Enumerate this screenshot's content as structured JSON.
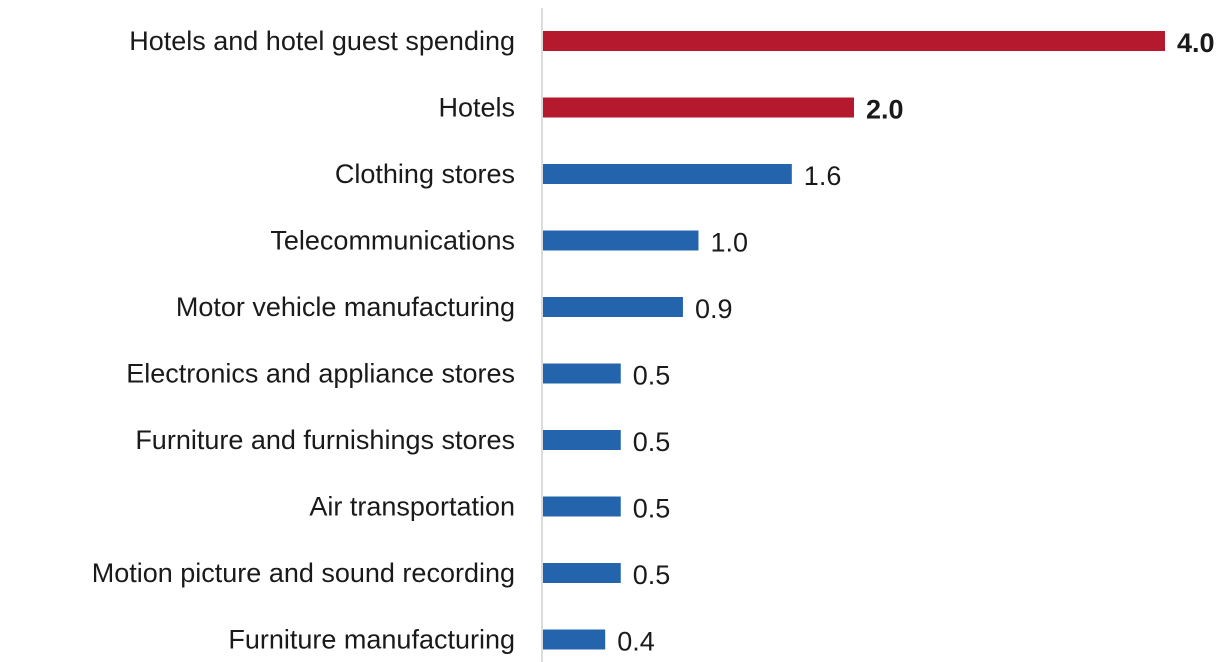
{
  "chart_data": {
    "type": "bar",
    "orientation": "horizontal",
    "categories": [
      "Hotels and hotel guest spending",
      "Hotels",
      "Clothing stores",
      "Telecommunications",
      "Motor vehicle manufacturing",
      "Electronics and appliance stores",
      "Furniture and furnishings stores",
      "Air transportation",
      "Motion picture and sound recording",
      "Furniture manufacturing"
    ],
    "values": [
      4.0,
      2.0,
      1.6,
      1.0,
      0.9,
      0.5,
      0.5,
      0.5,
      0.5,
      0.4
    ],
    "value_labels": [
      "4.0",
      "2.0",
      "1.6",
      "1.0",
      "0.9",
      "0.5",
      "0.5",
      "0.5",
      "0.5",
      "0.4"
    ],
    "highlighted": [
      true,
      true,
      false,
      false,
      false,
      false,
      false,
      false,
      false,
      false
    ],
    "colors": {
      "highlight": "#b5192e",
      "default": "#2464ad",
      "axis": "#d0d0d0",
      "text": "#1a1a1a"
    },
    "xlim": [
      0,
      4.0
    ],
    "grid": false,
    "legend": "none",
    "title": "",
    "xlabel": "",
    "ylabel": ""
  }
}
